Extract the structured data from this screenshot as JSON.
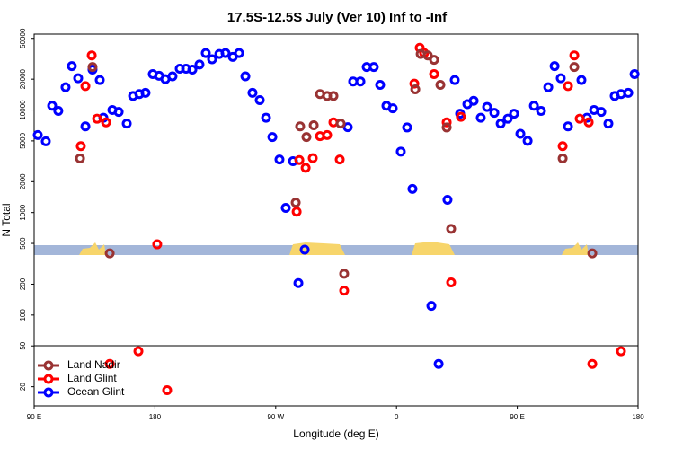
{
  "chart_data": {
    "type": "scatter",
    "title": "17.5S-12.5S July (Ver 10)   Inf to -Inf",
    "xlabel": "Longitude (deg E)",
    "ylabel": "N Total",
    "log_y": true,
    "legend": "lower left",
    "xlim": [
      90,
      540
    ],
    "ylim": [
      13,
      55000
    ],
    "xticks": [
      {
        "value": 90,
        "label": "90 E"
      },
      {
        "value": 180,
        "label": "180"
      },
      {
        "value": 270,
        "label": "90 W"
      },
      {
        "value": 360,
        "label": "0"
      },
      {
        "value": 450,
        "label": "90 E"
      },
      {
        "value": 540,
        "label": "180"
      }
    ],
    "yticks": [
      20,
      50,
      100,
      200,
      500,
      1000,
      2000,
      5000,
      10000,
      20000,
      50000
    ],
    "series": [
      {
        "name": "Land Nadir",
        "color": "#993333",
        "x": [
          124.2,
          133.5,
          146.3,
          284.9,
          288.2,
          292.9,
          298.3,
          303,
          308.3,
          313,
          318.4,
          321,
          374,
          378,
          383.3,
          388,
          392.7,
          397.4,
          400.7,
          483.8,
          492.5,
          505.9
        ],
        "values": [
          3370,
          26300,
          400,
          1250,
          6920,
          5450,
          7100,
          14300,
          13700,
          13700,
          7380,
          253,
          15900,
          35200,
          34100,
          30900,
          17600,
          6760,
          693,
          3370,
          26300,
          400
        ]
      },
      {
        "name": "Land Glint",
        "color": "#ff0000",
        "x": [
          124.8,
          128.2,
          132.9,
          136.9,
          143.6,
          146.3,
          167.7,
          181.7,
          189.1,
          285.6,
          287.6,
          292.3,
          297.6,
          303,
          308.3,
          313,
          317.7,
          321,
          373.3,
          377.3,
          380.6,
          388,
          397.4,
          400.7,
          408,
          483.8,
          487.8,
          492.5,
          496.5,
          503.2,
          505.9,
          527.3
        ],
        "values": [
          4440,
          17100,
          34100,
          8230,
          7590,
          33.4,
          44.4,
          490,
          18.5,
          1020,
          3250,
          2730,
          3390,
          5560,
          5700,
          7590,
          3290,
          173,
          18100,
          40400,
          35900,
          22400,
          7590,
          208,
          8580,
          4440,
          17100,
          34100,
          8230,
          7590,
          33.4,
          44.4
        ]
      },
      {
        "name": "Ocean Glint",
        "color": "#0000ff",
        "x": [
          92.7,
          98.7,
          103.4,
          108,
          113.4,
          118.1,
          122.8,
          128.2,
          133.5,
          138.9,
          141.6,
          148.3,
          153,
          159,
          163.7,
          168.4,
          173,
          178.4,
          183.1,
          187.8,
          193.1,
          198.5,
          203.2,
          207.9,
          213.2,
          217.9,
          222.6,
          228,
          232.6,
          238,
          242.7,
          247.4,
          252.7,
          258.1,
          262.8,
          267.5,
          272.8,
          277.5,
          282.9,
          286.9,
          291.6,
          323.7,
          327.7,
          333.1,
          337.8,
          343.1,
          347.8,
          352.5,
          357.2,
          363.2,
          367.9,
          371.9,
          386,
          391.4,
          398,
          403.4,
          407.4,
          412.8,
          417.5,
          422.8,
          427.5,
          432.9,
          437.6,
          442.9,
          447.6,
          452.3,
          457.7,
          462.4,
          467.7,
          473.1,
          477.8,
          482.4,
          487.8,
          497.8,
          501.9,
          507.2,
          512.6,
          517.9,
          522.6,
          527.3,
          532.7,
          537.4
        ],
        "values": [
          5700,
          4950,
          11000,
          9800,
          16700,
          26800,
          20400,
          6920,
          24800,
          19600,
          8400,
          10000,
          9580,
          7380,
          13700,
          14300,
          14700,
          22400,
          21600,
          20000,
          21300,
          25300,
          25300,
          24800,
          27800,
          35900,
          31300,
          35200,
          35900,
          33000,
          35900,
          21300,
          14700,
          12500,
          8400,
          5450,
          3290,
          1110,
          3170,
          205,
          435,
          6800,
          19000,
          19000,
          26300,
          26300,
          17600,
          11000,
          10400,
          3930,
          6760,
          1700,
          123,
          33.4,
          1330,
          19600,
          9200,
          11400,
          12300,
          8400,
          10700,
          9400,
          7380,
          8230,
          9200,
          5860,
          5000,
          11000,
          9800,
          16700,
          26800,
          20400,
          6920,
          19600,
          8400,
          10000,
          9580,
          7380,
          13700,
          14300,
          14700,
          22400
        ]
      }
    ]
  }
}
